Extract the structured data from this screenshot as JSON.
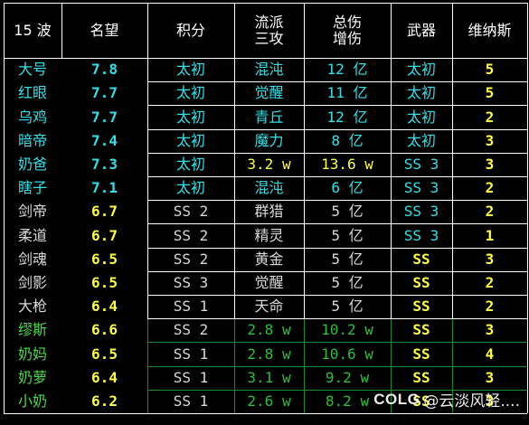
{
  "colors": {
    "white": "#ffffff",
    "cyan": "#33e0e8",
    "yellow": "#ffff40",
    "green": "#4ad94a",
    "dim_green": "#2cbf3a",
    "gray": "#d8d8d8",
    "grid": "#ffffff",
    "grid_green": "#1b8a2e"
  },
  "table": {
    "headers": [
      {
        "key": "wave",
        "lines": [
          "15 波"
        ]
      },
      {
        "key": "fame",
        "lines": [
          "名望"
        ]
      },
      {
        "key": "points",
        "lines": [
          "积分"
        ]
      },
      {
        "key": "school",
        "lines": [
          "流派",
          "三攻"
        ]
      },
      {
        "key": "damage",
        "lines": [
          "总伤",
          "增伤"
        ]
      },
      {
        "key": "weapon",
        "lines": [
          "武器"
        ]
      },
      {
        "key": "venus",
        "lines": [
          "维纳斯"
        ]
      }
    ],
    "rows": [
      {
        "name": "大号",
        "fame": "7.8",
        "points": "太初",
        "school": "混沌",
        "damage": "12 亿",
        "weapon": "太初",
        "venus": "5",
        "c": [
          "cyan",
          "cyan",
          "cyan",
          "cyan",
          "cyan",
          "cyan",
          "yellow"
        ]
      },
      {
        "name": "红眼",
        "fame": "7.7",
        "points": "太初",
        "school": "觉醒",
        "damage": "11 亿",
        "weapon": "太初",
        "venus": "5",
        "c": [
          "cyan",
          "cyan",
          "cyan",
          "cyan",
          "cyan",
          "cyan",
          "yellow"
        ]
      },
      {
        "name": "乌鸡",
        "fame": "7.7",
        "points": "太初",
        "school": "青丘",
        "damage": "12 亿",
        "weapon": "太初",
        "venus": "2",
        "c": [
          "cyan",
          "cyan",
          "cyan",
          "cyan",
          "cyan",
          "cyan",
          "yellow"
        ]
      },
      {
        "name": "暗帝",
        "fame": "7.4",
        "points": "太初",
        "school": "魔力",
        "damage": "8 亿",
        "weapon": "太初",
        "venus": "3",
        "c": [
          "cyan",
          "cyan",
          "cyan",
          "cyan",
          "cyan",
          "cyan",
          "yellow"
        ]
      },
      {
        "name": "奶爸",
        "fame": "7.3",
        "points": "太初",
        "school": "3.2 w",
        "damage": "13.6 w",
        "weapon": "SS 3",
        "venus": "3",
        "c": [
          "cyan",
          "cyan",
          "cyan",
          "yellow",
          "yellow",
          "cyan",
          "yellow"
        ]
      },
      {
        "name": "瞎子",
        "fame": "7.1",
        "points": "太初",
        "school": "混沌",
        "damage": "6 亿",
        "weapon": "SS 3",
        "venus": "2",
        "c": [
          "cyan",
          "cyan",
          "cyan",
          "cyan",
          "cyan",
          "cyan",
          "yellow"
        ]
      },
      {
        "name": "剑帝",
        "fame": "6.7",
        "points": "SS 2",
        "school": "群猎",
        "damage": "5 亿",
        "weapon": "SS 3",
        "venus": "2",
        "c": [
          "gray",
          "yellow",
          "gray",
          "gray",
          "gray",
          "cyan",
          "yellow"
        ]
      },
      {
        "name": "柔道",
        "fame": "6.7",
        "points": "SS 2",
        "school": "精灵",
        "damage": "5 亿",
        "weapon": "SS 3",
        "venus": "1",
        "c": [
          "gray",
          "yellow",
          "gray",
          "gray",
          "gray",
          "cyan",
          "yellow"
        ]
      },
      {
        "name": "剑魂",
        "fame": "6.5",
        "points": "SS 2",
        "school": "黄金",
        "damage": "5 亿",
        "weapon": "SS",
        "venus": "3",
        "c": [
          "gray",
          "yellow",
          "gray",
          "gray",
          "gray",
          "yellow",
          "yellow"
        ]
      },
      {
        "name": "剑影",
        "fame": "6.5",
        "points": "SS 3",
        "school": "觉醒",
        "damage": "5 亿",
        "weapon": "SS",
        "venus": "2",
        "c": [
          "gray",
          "yellow",
          "gray",
          "gray",
          "gray",
          "yellow",
          "yellow"
        ]
      },
      {
        "name": "大枪",
        "fame": "6.4",
        "points": "SS 1",
        "school": "天命",
        "damage": "5 亿",
        "weapon": "SS",
        "venus": "2",
        "c": [
          "gray",
          "yellow",
          "gray",
          "gray",
          "gray",
          "yellow",
          "yellow"
        ]
      },
      {
        "name": "缪斯",
        "fame": "6.6",
        "points": "SS 2",
        "school": "2.8 w",
        "damage": "10.2 w",
        "weapon": "SS",
        "venus": "3",
        "c": [
          "green",
          "yellow",
          "gray",
          "dim_green",
          "dim_green",
          "yellow",
          "yellow"
        ]
      },
      {
        "name": "奶妈",
        "fame": "6.5",
        "points": "SS 1",
        "school": "2.8 w",
        "damage": "10.6 w",
        "weapon": "SS",
        "venus": "4",
        "c": [
          "green",
          "yellow",
          "gray",
          "dim_green",
          "dim_green",
          "yellow",
          "yellow"
        ]
      },
      {
        "name": "奶萝",
        "fame": "6.4",
        "points": "SS 1",
        "school": "3.1 w",
        "damage": "9.2 w",
        "weapon": "SS",
        "venus": "3",
        "c": [
          "green",
          "yellow",
          "gray",
          "dim_green",
          "dim_green",
          "yellow",
          "yellow"
        ]
      },
      {
        "name": "小奶",
        "fame": "6.2",
        "points": "SS 1",
        "school": "2.6 w",
        "damage": "8.2 w",
        "weapon": "SS",
        "venus": "3",
        "c": [
          "green",
          "yellow",
          "gray",
          "dim_green",
          "dim_green",
          "yellow",
          "yellow"
        ]
      }
    ]
  },
  "watermark": {
    "logo": "COLG",
    "text": "@云淡风轻...."
  }
}
